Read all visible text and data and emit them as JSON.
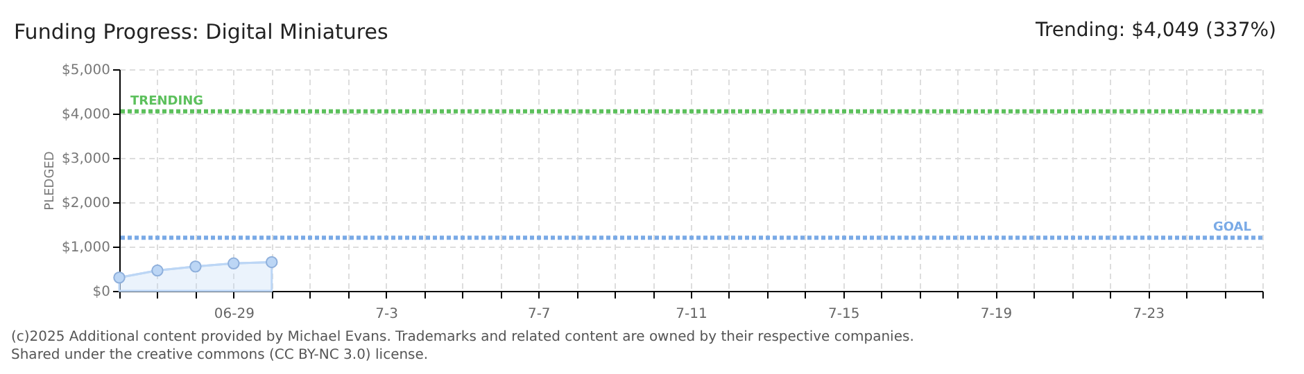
{
  "chart_data": {
    "type": "area",
    "title": "Funding Progress: Digital Miniatures",
    "ylabel": "PLEDGED",
    "annotations": [
      "Trending: $4,049 (337%)",
      "(c)2025 Additional content provided by Michael Evans. Trademarks and related content are owned by their respective companies.",
      "Shared under the creative commons (CC BY-NC 3.0) license."
    ],
    "x": [
      "--06-26",
      "--06-27",
      "--06-28",
      "--06-29",
      "--06-30"
    ],
    "series": [
      {
        "color": "#bcd6f5",
        "values": [
          300,
          460,
          550,
          620,
          650
        ]
      }
    ],
    "marker": "circle",
    "grid": true,
    "xlim": [
      "--06-26",
      "--07-26"
    ],
    "xticks": [
      {
        "value": "--06-26",
        "label": null
      },
      {
        "value": "--06-27",
        "label": null
      },
      {
        "value": "--06-28",
        "label": null
      },
      {
        "value": "--06-29",
        "label": "06-29"
      },
      {
        "value": "--06-30",
        "label": null
      },
      {
        "value": "--07-01",
        "label": null
      },
      {
        "value": "--07-02",
        "label": null
      },
      {
        "value": "--07-03",
        "label": "7-3"
      },
      {
        "value": "--07-04",
        "label": null
      },
      {
        "value": "--07-05",
        "label": null
      },
      {
        "value": "--07-06",
        "label": null
      },
      {
        "value": "--07-07",
        "label": "7-7"
      },
      {
        "value": "--07-08",
        "label": null
      },
      {
        "value": "--07-09",
        "label": null
      },
      {
        "value": "--07-10",
        "label": null
      },
      {
        "value": "--07-11",
        "label": "7-11"
      },
      {
        "value": "--07-12",
        "label": null
      },
      {
        "value": "--07-13",
        "label": null
      },
      {
        "value": "--07-14",
        "label": null
      },
      {
        "value": "--07-15",
        "label": "7-15"
      },
      {
        "value": "--07-16",
        "label": null
      },
      {
        "value": "--07-17",
        "label": null
      },
      {
        "value": "--07-18",
        "label": null
      },
      {
        "value": "--07-19",
        "label": "7-19"
      },
      {
        "value": "--07-20",
        "label": null
      },
      {
        "value": "--07-21",
        "label": null
      },
      {
        "value": "--07-22",
        "label": null
      },
      {
        "value": "--07-23",
        "label": "7-23"
      },
      {
        "value": "--07-24",
        "label": null
      },
      {
        "value": "--07-25",
        "label": null
      },
      {
        "value": "--07-26",
        "label": null
      }
    ],
    "ylim": [
      0,
      5000
    ],
    "yticks": [
      {
        "value": 0,
        "label": "$0"
      },
      {
        "value": 1000,
        "label": "$1,000"
      },
      {
        "value": 2000,
        "label": "$2,000"
      },
      {
        "value": 3000,
        "label": "$3,000"
      },
      {
        "value": 4000,
        "label": "$4,000"
      },
      {
        "value": 5000,
        "label": "$5,000"
      }
    ],
    "ref_lines": [
      {
        "axis": "y",
        "value": 4049,
        "label": "TRENDING",
        "color": "#5cc05c",
        "line_style": "dotted"
      },
      {
        "axis": "y",
        "value": 1200,
        "label": "GOAL",
        "color": "#7aaae6",
        "line_style": "dotted"
      }
    ]
  }
}
